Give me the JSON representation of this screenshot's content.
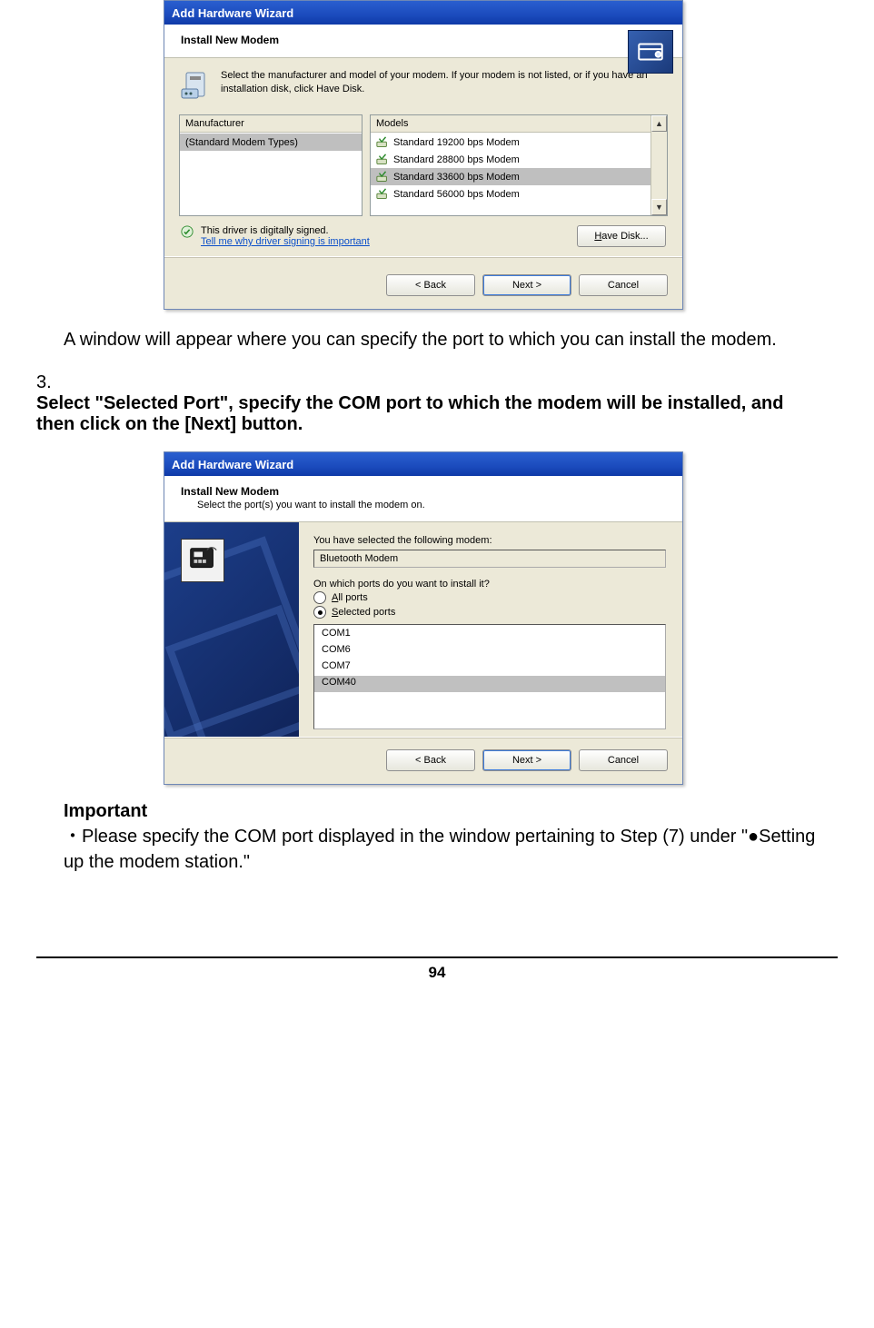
{
  "dialog1": {
    "title": "Add Hardware Wizard",
    "header_title": "Install New Modem",
    "instruction": "Select the manufacturer and model of your modem. If your modem is not listed, or if you have an installation disk, click Have Disk.",
    "manufacturer_header": "Manufacturer",
    "models_header": "Models",
    "manufacturer_item": "(Standard Modem Types)",
    "models": [
      "Standard 19200 bps Modem",
      "Standard 28800 bps Modem",
      "Standard 33600 bps Modem",
      "Standard 56000 bps Modem"
    ],
    "models_selected_index": 2,
    "signed_text": "This driver is digitally signed.",
    "signed_link": "Tell me why driver signing is important",
    "have_disk": "Have Disk...",
    "back": "< Back",
    "next": "Next >",
    "cancel": "Cancel"
  },
  "doc": {
    "after1": "A window will appear where you can specify the port to which you can install the modem.",
    "step_num": "3.",
    "step_text": "Select \"Selected Port\", specify the COM port to which the modem will be installed, and then click on the [Next] button.",
    "important_label": "Important",
    "important_body": "・Please specify the COM port displayed in the window pertaining to Step (7) under \"●Setting up the modem station.\"",
    "page_number": "94"
  },
  "dialog2": {
    "title": "Add Hardware Wizard",
    "header_title": "Install New Modem",
    "header_sub": "Select the port(s) you want to install the modem on.",
    "selected_label": "You have selected the following modem:",
    "selected_value": "Bluetooth Modem",
    "ports_q": "On which ports do you want to install it?",
    "radio_all": "All ports",
    "radio_sel": "Selected ports",
    "ports": [
      "COM1",
      "COM6",
      "COM7",
      "COM40"
    ],
    "port_selected_index": 3,
    "back": "< Back",
    "next": "Next >",
    "cancel": "Cancel"
  },
  "colors": {
    "titlebar_bg": "#1b4bbd",
    "dialog_bg": "#ece9d8",
    "link_color": "#0b4fc9"
  }
}
